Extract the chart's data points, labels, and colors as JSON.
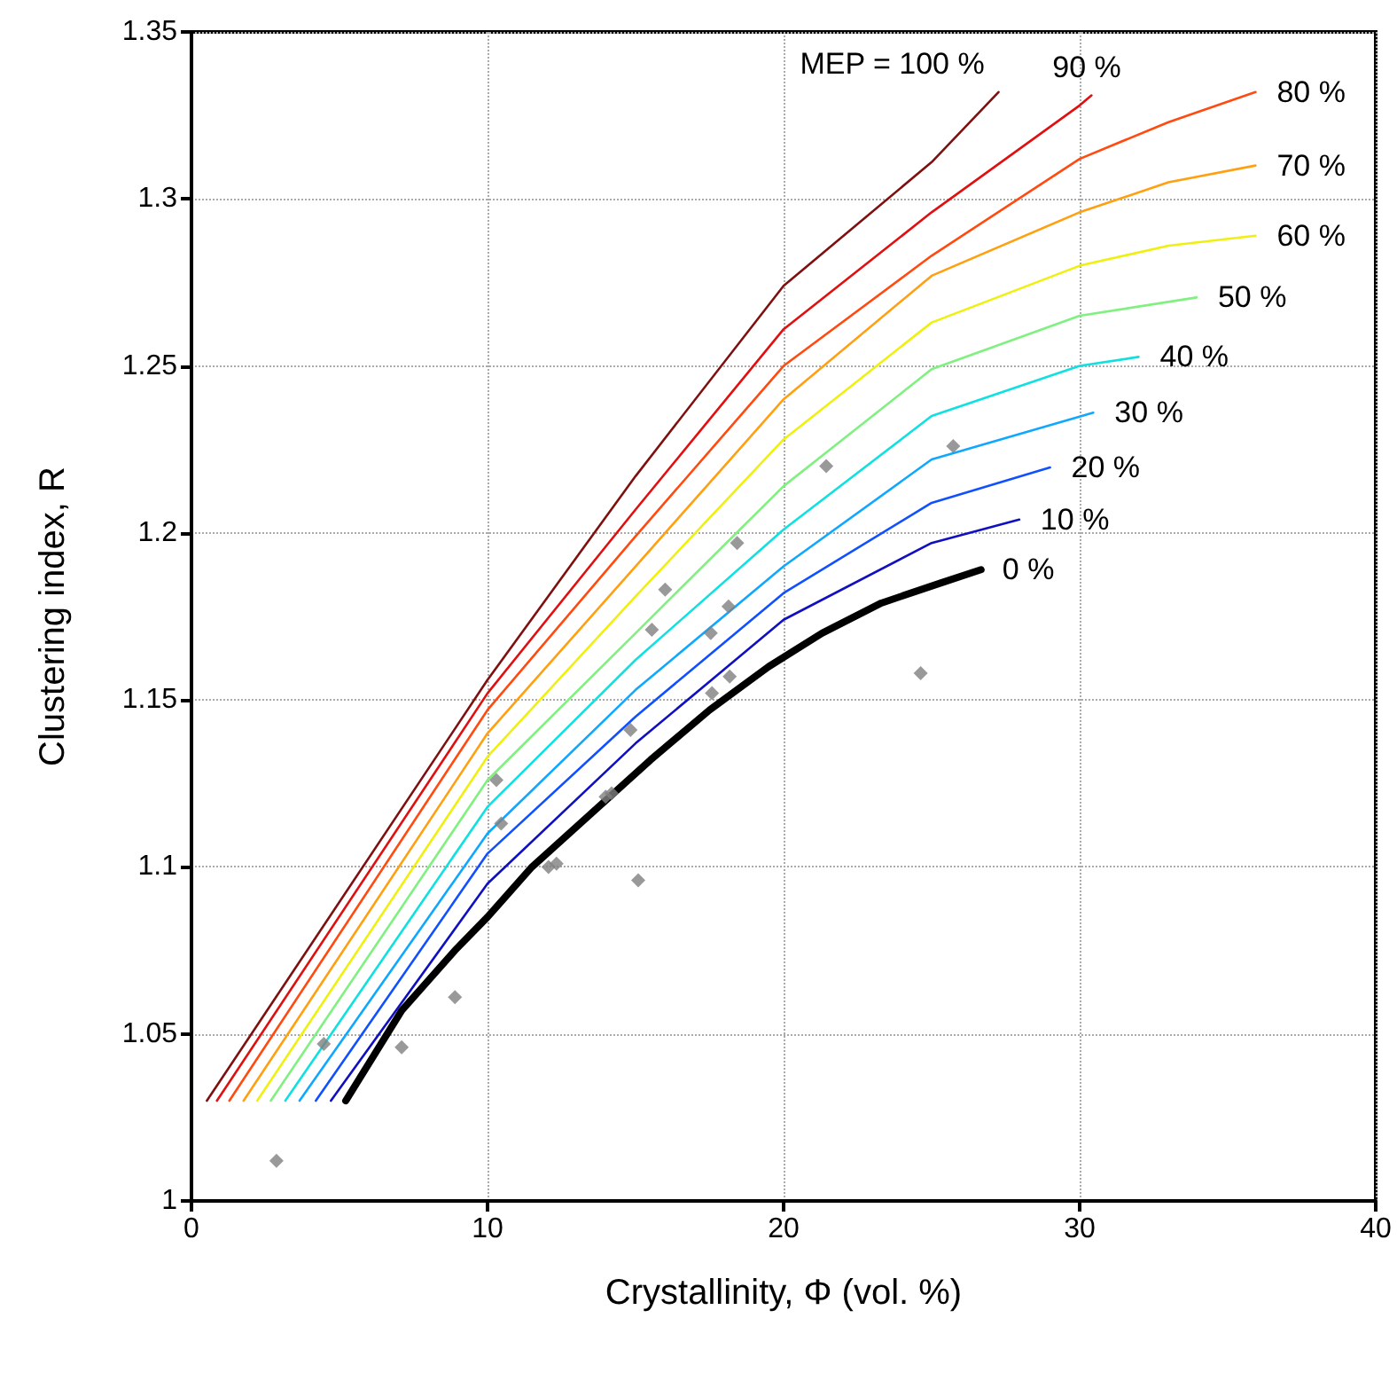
{
  "chart_data": {
    "type": "line",
    "xlabel": "Crystallinity, Φ (vol. %)",
    "ylabel": "Clustering index, R",
    "xlim": [
      0,
      40
    ],
    "xticks": [
      0,
      10,
      20,
      30,
      40
    ],
    "ylim": [
      1,
      1.35
    ],
    "yticks": [
      1,
      1.05,
      1.1,
      1.15,
      1.2,
      1.25,
      1.3,
      1.35
    ],
    "grid": true,
    "legend": false,
    "marker": "none",
    "line_style": "solid",
    "series": [
      {
        "name": "MEP = 100 %",
        "color": "#7f1010",
        "x": [
          0.52,
          10,
          15,
          20,
          25,
          27.26
        ],
        "values": [
          1.03,
          1.156,
          1.217,
          1.274,
          1.311,
          1.332
        ]
      },
      {
        "name": "90 %",
        "color": "#e01010",
        "x": [
          0.86,
          10,
          15,
          20,
          25,
          30,
          30.4
        ],
        "values": [
          1.03,
          1.152,
          1.207,
          1.261,
          1.296,
          1.328,
          1.331
        ]
      },
      {
        "name": "80 %",
        "color": "#ff4a10",
        "x": [
          1.28,
          10,
          15,
          20,
          25,
          30,
          33,
          35.94
        ],
        "values": [
          1.03,
          1.147,
          1.199,
          1.25,
          1.283,
          1.312,
          1.323,
          1.332
        ]
      },
      {
        "name": "70 %",
        "color": "#ffa010",
        "x": [
          1.76,
          10,
          15,
          20,
          25,
          30,
          33,
          35.94
        ],
        "values": [
          1.03,
          1.14,
          1.19,
          1.24,
          1.277,
          1.296,
          1.305,
          1.31
        ]
      },
      {
        "name": "60 %",
        "color": "#f0f010",
        "x": [
          2.22,
          10,
          15,
          20,
          25,
          30,
          33,
          35.94
        ],
        "values": [
          1.03,
          1.133,
          1.181,
          1.228,
          1.263,
          1.28,
          1.286,
          1.289
        ]
      },
      {
        "name": "50 %",
        "color": "#80f080",
        "x": [
          2.68,
          10,
          15,
          20,
          25,
          30,
          33.95
        ],
        "values": [
          1.03,
          1.126,
          1.17,
          1.214,
          1.249,
          1.265,
          1.2705
        ]
      },
      {
        "name": "40 %",
        "color": "#10e0e0",
        "x": [
          3.17,
          10,
          15,
          20,
          25,
          30,
          31.99
        ],
        "values": [
          1.03,
          1.118,
          1.162,
          1.201,
          1.235,
          1.25,
          1.2527
        ]
      },
      {
        "name": "30 %",
        "color": "#10a8ff",
        "x": [
          3.65,
          10,
          15,
          20,
          25,
          30.46
        ],
        "values": [
          1.03,
          1.11,
          1.153,
          1.19,
          1.222,
          1.236
        ]
      },
      {
        "name": "20 %",
        "color": "#1050ff",
        "x": [
          4.2,
          10,
          15,
          20,
          25,
          29.0
        ],
        "values": [
          1.03,
          1.104,
          1.145,
          1.182,
          1.209,
          1.2196
        ]
      },
      {
        "name": "10 %",
        "color": "#1010c0",
        "x": [
          4.71,
          10,
          15,
          20,
          25,
          27.96
        ],
        "values": [
          1.03,
          1.095,
          1.137,
          1.174,
          1.197,
          1.204
        ]
      },
      {
        "name": "0 %",
        "color": "#000000",
        "x": [
          5.21,
          7.1,
          8.9,
          10,
          11.5,
          13.5,
          15.5,
          17.5,
          19.5,
          21.3,
          23.3,
          25.3,
          26.67
        ],
        "values": [
          1.03,
          1.057,
          1.075,
          1.085,
          1.1,
          1.116,
          1.132,
          1.147,
          1.16,
          1.17,
          1.179,
          1.185,
          1.189
        ]
      },
      {
        "type": "scatter",
        "marker": "diamond",
        "color": "#808080",
        "x": [
          2.87,
          4.47,
          7.1,
          8.9,
          10.3,
          10.46,
          12.06,
          12.33,
          13.99,
          14.19,
          15.09,
          14.83,
          15.55,
          16.0,
          17.54,
          17.58,
          18.14,
          18.18,
          18.43,
          21.44,
          25.73,
          24.63
        ],
        "values": [
          1.012,
          1.047,
          1.046,
          1.061,
          1.126,
          1.113,
          1.1,
          1.101,
          1.121,
          1.122,
          1.096,
          1.141,
          1.171,
          1.183,
          1.17,
          1.152,
          1.178,
          1.157,
          1.197,
          1.22,
          1.226,
          1.158
        ]
      }
    ]
  }
}
